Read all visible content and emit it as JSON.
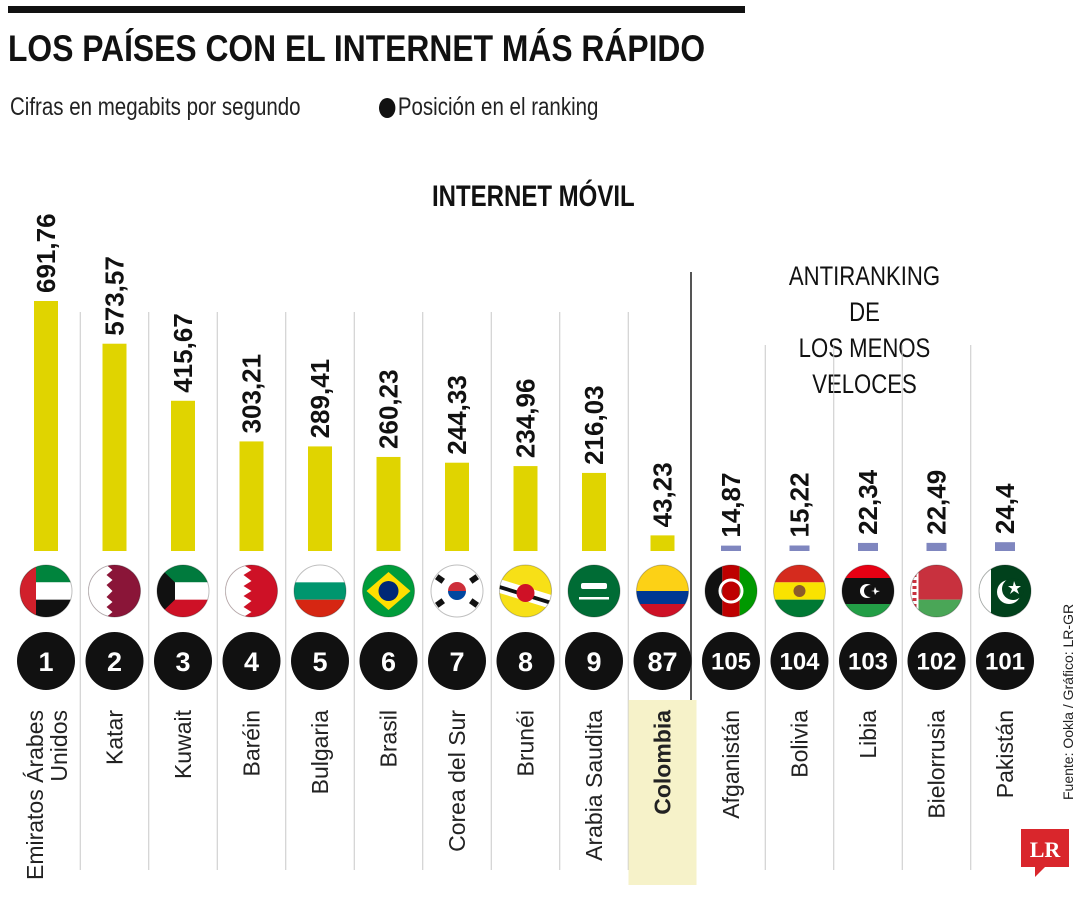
{
  "header": {
    "title": "LOS PAÍSES CON EL INTERNET MÁS RÁPIDO",
    "subtitle": "Cifras en megabits por segundo",
    "legend_label": "Posición en el ranking"
  },
  "section_title": "INTERNET MÓVIL",
  "antiranking_title": "ANTIRANKING DE\nLOS MENOS VELOCES",
  "source": "Fuente: Ookla / Gráfico: LR-GR",
  "logo_text": "LR",
  "colors": {
    "top_bar": "#e0d400",
    "bottom_bar": "#7f86bf",
    "highlight": "#f6f2c9",
    "rank_circle": "#111111",
    "logo": "#d9262c"
  },
  "chart_data": {
    "type": "bar",
    "unit": "megabits por segundo",
    "groups": [
      {
        "name": "top",
        "count": 10
      },
      {
        "name": "antiranking",
        "count": 5
      }
    ],
    "highlighted": "Colombia",
    "items": [
      {
        "country": "Emiratos Árabes Unidos",
        "value": 691.76,
        "label": "691,76",
        "rank": "1",
        "flag": "uae-flag-icon"
      },
      {
        "country": "Katar",
        "value": 573.57,
        "label": "573,57",
        "rank": "2",
        "flag": "qatar-flag-icon"
      },
      {
        "country": "Kuwait",
        "value": 415.67,
        "label": "415,67",
        "rank": "3",
        "flag": "kuwait-flag-icon"
      },
      {
        "country": "Baréin",
        "value": 303.21,
        "label": "303,21",
        "rank": "4",
        "flag": "bahrain-flag-icon"
      },
      {
        "country": "Bulgaria",
        "value": 289.41,
        "label": "289,41",
        "rank": "5",
        "flag": "bulgaria-flag-icon"
      },
      {
        "country": "Brasil",
        "value": 260.23,
        "label": "260,23",
        "rank": "6",
        "flag": "brazil-flag-icon"
      },
      {
        "country": "Corea del Sur",
        "value": 244.33,
        "label": "244,33",
        "rank": "7",
        "flag": "south-korea-flag-icon"
      },
      {
        "country": "Brunéi",
        "value": 234.96,
        "label": "234,96",
        "rank": "8",
        "flag": "brunei-flag-icon"
      },
      {
        "country": "Arabia Saudita",
        "value": 216.03,
        "label": "216,03",
        "rank": "9",
        "flag": "saudi-arabia-flag-icon"
      },
      {
        "country": "Colombia",
        "value": 43.23,
        "label": "43,23",
        "rank": "87",
        "flag": "colombia-flag-icon"
      },
      {
        "country": "Afganistán",
        "value": 14.87,
        "label": "14,87",
        "rank": "105",
        "flag": "afghanistan-flag-icon"
      },
      {
        "country": "Bolivia",
        "value": 15.22,
        "label": "15,22",
        "rank": "104",
        "flag": "bolivia-flag-icon"
      },
      {
        "country": "Libia",
        "value": 22.34,
        "label": "22,34",
        "rank": "103",
        "flag": "libya-flag-icon"
      },
      {
        "country": "Bielorrusia",
        "value": 22.49,
        "label": "22,49",
        "rank": "102",
        "flag": "belarus-flag-icon"
      },
      {
        "country": "Pakistán",
        "value": 24.4,
        "label": "24,4",
        "rank": "101",
        "flag": "pakistan-flag-icon"
      }
    ]
  }
}
